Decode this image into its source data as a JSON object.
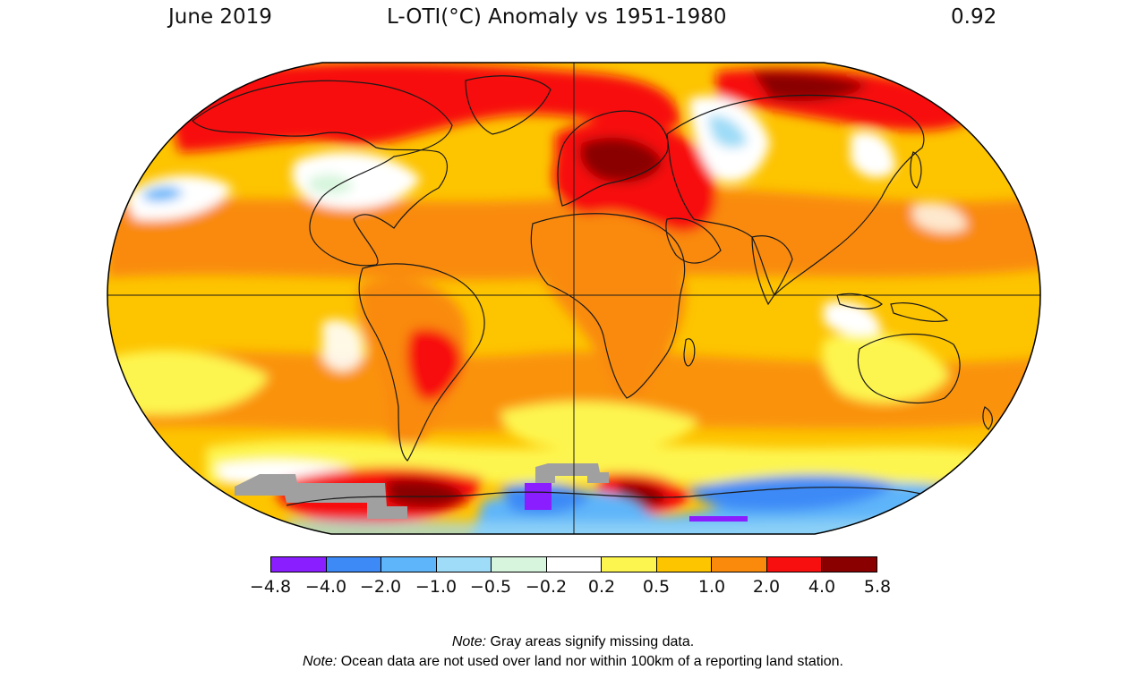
{
  "header": {
    "date": "June 2019",
    "title": "L-OTI(°C) Anomaly vs 1951-1980",
    "value": "0.92"
  },
  "legend": {
    "colors": [
      "#8a1eff",
      "#3d8af7",
      "#5fb5f9",
      "#9edcf7",
      "#d6f5dc",
      "#ffffff",
      "#fdf54f",
      "#fdc400",
      "#f98a0b",
      "#f70e0e",
      "#8a0000"
    ],
    "ticks": [
      "−4.8",
      "−4.0",
      "−2.0",
      "−1.0",
      "−0.5",
      "−0.2",
      "0.2",
      "0.5",
      "1.0",
      "2.0",
      "4.0",
      "5.8"
    ]
  },
  "map": {
    "missing_color": "#a0a0a0",
    "land_outline_color": "#1a1a1a"
  },
  "notes": [
    {
      "label": "Note:",
      "text": " Gray areas signify missing data."
    },
    {
      "label": "Note:",
      "text": " Ocean data are not used over land nor within 100km of a reporting land station."
    }
  ]
}
